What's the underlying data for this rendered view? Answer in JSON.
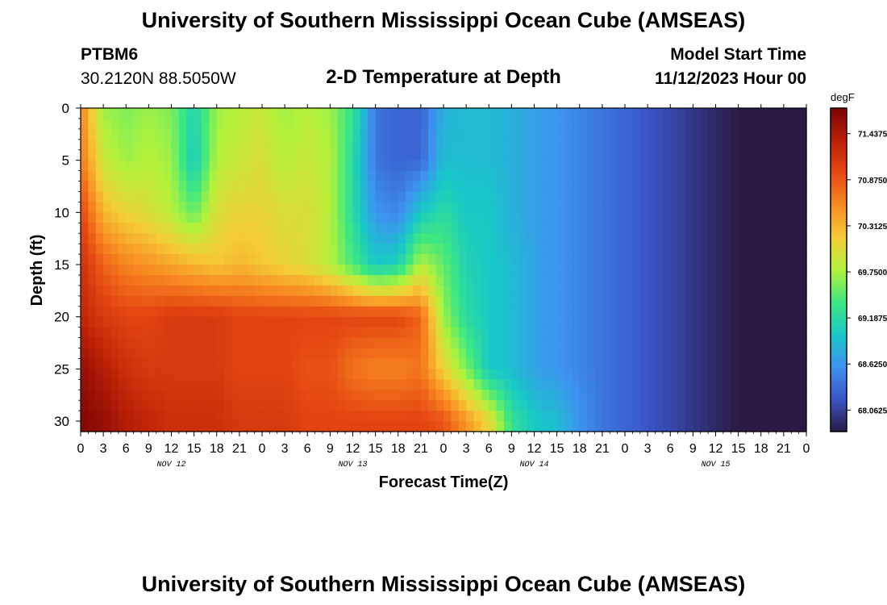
{
  "header": {
    "title": "University of Southern Mississippi Ocean Cube (AMSEAS)",
    "station_id": "PTBM6",
    "station_coords": "30.2120N  88.5050W",
    "plot_title": "2-D Temperature at Depth",
    "model_start_label": "Model Start Time",
    "model_start_value": "11/12/2023 Hour 00"
  },
  "footer": {
    "title": "University of Southern Mississippi Ocean Cube (AMSEAS)"
  },
  "chart_data": {
    "type": "heatmap",
    "xlabel": "Forecast Time(Z)",
    "ylabel": "Depth (ft)",
    "x_range_hours": [
      0,
      96
    ],
    "y_range_ft": [
      0,
      31
    ],
    "y_inverted": true,
    "x_ticks": [
      "0",
      "3",
      "6",
      "9",
      "12",
      "15",
      "18",
      "21",
      "0",
      "3",
      "6",
      "9",
      "12",
      "15",
      "18",
      "21",
      "0",
      "3",
      "6",
      "9",
      "12",
      "15",
      "18",
      "21",
      "0",
      "3",
      "6",
      "9",
      "12",
      "15",
      "18",
      "21",
      "0"
    ],
    "date_labels": [
      {
        "text": "NOV 12",
        "hour": 12
      },
      {
        "text": "NOV 13",
        "hour": 36
      },
      {
        "text": "NOV 14",
        "hour": 60
      },
      {
        "text": "NOV 15",
        "hour": 84
      }
    ],
    "y_ticks": [
      0,
      5,
      10,
      15,
      20,
      25,
      30
    ],
    "colorbar": {
      "unit": "degF",
      "min": 67.8,
      "max": 71.75,
      "tick_labels": [
        "71.4375",
        "70.8750",
        "70.3125",
        "69.7500",
        "69.1875",
        "68.6250",
        "68.0625"
      ],
      "tick_values": [
        71.4375,
        70.875,
        70.3125,
        69.75,
        69.1875,
        68.625,
        68.0625
      ],
      "colors": [
        "#2b1a45",
        "#3a55c8",
        "#3d93f0",
        "#18c8c8",
        "#3ee880",
        "#b2f23a",
        "#f5cc36",
        "#f88a22",
        "#e64812",
        "#bb2006",
        "#7d0404"
      ]
    },
    "temperature_degF": {
      "times_hours": [
        0,
        3,
        6,
        9,
        12,
        15,
        18,
        21,
        24,
        27,
        30,
        33,
        36,
        39,
        42,
        45,
        48,
        51,
        54,
        57,
        60,
        63,
        66,
        69,
        72,
        75,
        78,
        81,
        84,
        87,
        90,
        93,
        96
      ],
      "depths_ft": [
        0,
        5,
        10,
        15,
        20,
        25,
        30
      ],
      "values": [
        [
          70.6,
          69.7,
          69.6,
          69.7,
          69.6,
          69.1,
          69.7,
          69.8,
          69.9,
          69.7,
          69.8,
          69.7,
          69.3,
          68.4,
          68.3,
          68.3,
          68.8,
          68.9,
          68.9,
          68.8,
          68.7,
          68.6,
          68.5,
          68.4,
          68.3,
          68.2,
          68.1,
          68.0,
          67.9,
          67.8,
          67.8,
          67.8,
          67.8
        ],
        [
          70.7,
          69.9,
          69.7,
          69.8,
          69.7,
          69.0,
          69.8,
          69.9,
          70.0,
          69.8,
          69.9,
          69.8,
          69.2,
          68.4,
          68.3,
          68.3,
          68.9,
          68.9,
          68.9,
          68.8,
          68.7,
          68.6,
          68.5,
          68.4,
          68.3,
          68.2,
          68.1,
          68.0,
          67.9,
          67.8,
          67.8,
          67.8,
          67.8
        ],
        [
          71.0,
          70.3,
          70.1,
          70.0,
          69.8,
          69.5,
          70.0,
          70.1,
          70.1,
          70.0,
          70.0,
          69.8,
          69.2,
          68.6,
          68.5,
          69.0,
          69.2,
          69.0,
          69.0,
          68.8,
          68.7,
          68.6,
          68.5,
          68.4,
          68.3,
          68.2,
          68.1,
          68.0,
          67.9,
          67.8,
          67.8,
          67.8,
          67.8
        ],
        [
          71.2,
          70.8,
          70.6,
          70.5,
          70.4,
          70.3,
          70.2,
          70.3,
          70.2,
          70.1,
          70.0,
          69.8,
          69.4,
          69.0,
          69.1,
          69.8,
          69.5,
          69.1,
          69.0,
          68.9,
          68.7,
          68.6,
          68.5,
          68.4,
          68.3,
          68.2,
          68.1,
          68.0,
          67.9,
          67.8,
          67.8,
          67.8,
          67.8
        ],
        [
          71.3,
          71.1,
          71.0,
          71.0,
          71.1,
          71.1,
          71.1,
          71.0,
          71.0,
          71.0,
          71.0,
          71.0,
          71.0,
          71.0,
          71.0,
          70.8,
          69.7,
          69.2,
          69.0,
          68.9,
          68.7,
          68.6,
          68.5,
          68.4,
          68.3,
          68.2,
          68.1,
          68.0,
          67.9,
          67.8,
          67.8,
          67.8,
          67.8
        ],
        [
          71.6,
          71.4,
          71.2,
          71.1,
          71.1,
          71.1,
          71.1,
          71.0,
          71.0,
          71.0,
          70.9,
          70.9,
          70.7,
          70.6,
          70.6,
          70.7,
          70.1,
          69.6,
          69.0,
          68.9,
          68.7,
          68.6,
          68.5,
          68.4,
          68.3,
          68.2,
          68.1,
          68.0,
          67.9,
          67.8,
          67.8,
          67.8,
          67.8
        ],
        [
          71.7,
          71.6,
          71.4,
          71.3,
          71.2,
          71.2,
          71.2,
          71.1,
          71.1,
          71.1,
          71.0,
          71.0,
          71.0,
          71.0,
          71.0,
          71.0,
          70.9,
          70.5,
          70.1,
          69.3,
          69.0,
          68.9,
          68.6,
          68.4,
          68.3,
          68.2,
          68.1,
          68.0,
          67.9,
          67.8,
          67.8,
          67.8,
          67.8
        ]
      ]
    }
  }
}
